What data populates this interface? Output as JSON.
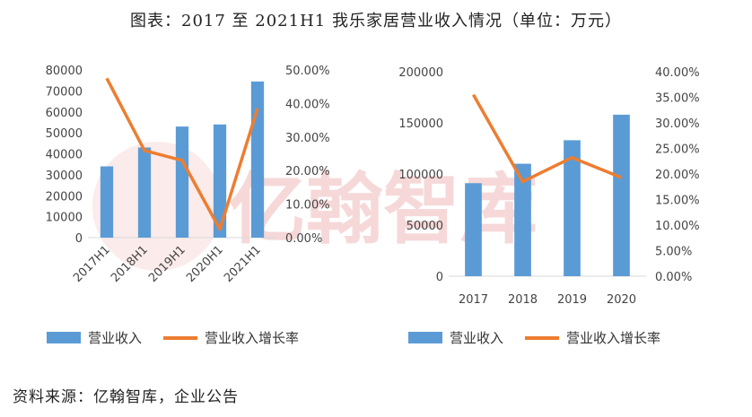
{
  "title": "图表：2017 至 2021H1 我乐家居营业收入情况（单位：万元）",
  "source": "资料来源：亿翰智库，企业公告",
  "watermark": "亿翰智库",
  "colors": {
    "bar": "#5b9bd5",
    "line": "#ed7d31",
    "watermark": "#f4cccc"
  },
  "chart_data": [
    {
      "type": "bar+line",
      "categories": [
        "2017H1",
        "2018H1",
        "2019H1",
        "2020H1",
        "2021H1"
      ],
      "ylim": [
        0,
        80000
      ],
      "y2lim": [
        0,
        0.5
      ],
      "yticks": [
        "0",
        "10000",
        "20000",
        "30000",
        "40000",
        "50000",
        "60000",
        "70000",
        "80000"
      ],
      "y2ticks": [
        "0.00%",
        "10.00%",
        "20.00%",
        "30.00%",
        "40.00%",
        "50.00%"
      ],
      "series": [
        {
          "name": "营业收入",
          "type": "bar",
          "axis": "left",
          "values": [
            34000,
            43000,
            53000,
            54000,
            74500
          ]
        },
        {
          "name": "营业收入增长率",
          "type": "line",
          "axis": "right",
          "values": [
            0.475,
            0.26,
            0.23,
            0.025,
            0.385
          ]
        }
      ],
      "legend": "bottom"
    },
    {
      "type": "bar+line",
      "categories": [
        "2017",
        "2018",
        "2019",
        "2020"
      ],
      "ylim": [
        0,
        200000
      ],
      "y2lim": [
        0,
        0.4
      ],
      "yticks": [
        "0",
        "50000",
        "100000",
        "150000",
        "200000"
      ],
      "y2ticks": [
        "0.00%",
        "5.00%",
        "10.00%",
        "15.00%",
        "20.00%",
        "25.00%",
        "30.00%",
        "35.00%",
        "40.00%"
      ],
      "series": [
        {
          "name": "营业收入",
          "type": "bar",
          "axis": "left",
          "values": [
            91000,
            110000,
            133000,
            158000
          ]
        },
        {
          "name": "营业收入增长率",
          "type": "line",
          "axis": "right",
          "values": [
            0.355,
            0.185,
            0.232,
            0.193
          ]
        }
      ],
      "legend": "bottom"
    }
  ]
}
